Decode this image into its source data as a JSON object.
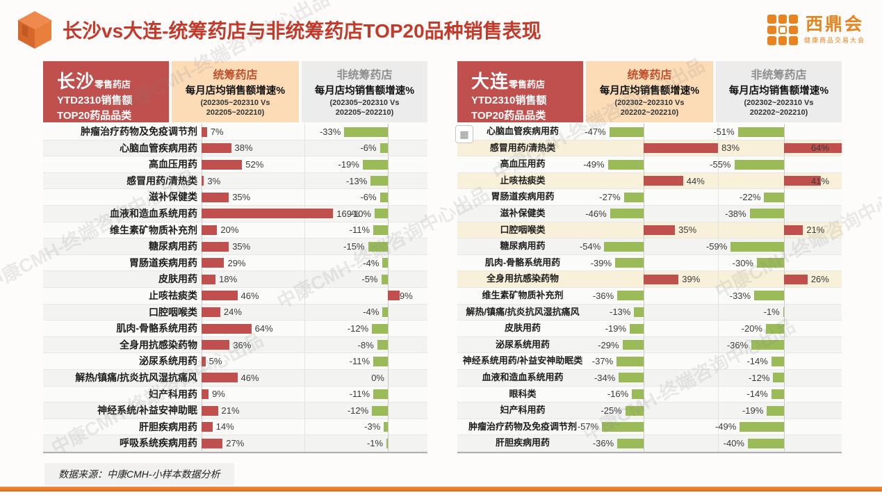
{
  "page": {
    "title": "长沙vs大连-统筹药店与非统筹药店TOP20品种销售表现",
    "source_note": "数据来源：中康CMH-小样本数据分析",
    "watermark": "中康CMH-终端咨询中心出品",
    "logo": {
      "name": "西鼎会",
      "tagline": "健康商品交易大会"
    }
  },
  "colors": {
    "positive_bar": "#c0504d",
    "negative_bar": "#9bbb59",
    "panel_header_bg": "#c0504d",
    "tc_header_bg": "#fbdcb7",
    "tc_header_title": "#c0512e",
    "ntc_header_bg": "#ececec",
    "ntc_header_title": "#8f8f8f",
    "highlight_row_bg": "#f8f0d8",
    "title_red": "#c33a2b",
    "logo_orange": "#e8831f"
  },
  "panels": [
    {
      "city": "长沙",
      "city_suffix": "零售药店",
      "subtitle1": "YTD2310销售额",
      "subtitle2": "TOP20药品品类",
      "tc_title": "统筹药店",
      "tc_metric": "每月店均销售额增速%",
      "tc_period": "(202305~202310 Vs\n202205~202210)",
      "ntc_title": "非统筹药店",
      "ntc_metric": "每月店均销售额增速%",
      "ntc_period": "(202305~202310 Vs\n202205~202210)"
    },
    {
      "city": "大连",
      "city_suffix": "零售药店",
      "subtitle1": "YTD2310销售额",
      "subtitle2": "TOP20药品品类",
      "tc_title": "统筹药店",
      "tc_metric": "每月店均销售额增速%",
      "tc_period": "(202302~202310 Vs\n202202~202210)",
      "ntc_title": "非统筹药店",
      "ntc_metric": "每月店均销售额增速%",
      "ntc_period": "(202302~202310 Vs\n202202~202210)"
    }
  ],
  "chart_data": [
    {
      "type": "bar",
      "orientation": "horizontal",
      "title": "长沙零售药店 YTD2310销售额 TOP20药品品类",
      "unit": "%",
      "categories": [
        "肿瘤治疗药物及免疫调节剂",
        "心脑血管疾病用药",
        "高血压用药",
        "感冒用药/清热类",
        "滋补保健类",
        "血液和造血系统用药",
        "维生素矿物质补充剂",
        "糖尿病用药",
        "胃肠道疾病用药",
        "皮肤用药",
        "止咳祛痰类",
        "口腔咽喉类",
        "肌肉-骨骼系统用药",
        "全身用抗感染药物",
        "泌尿系统用药",
        "解热/镇痛/抗炎抗风湿抗痛风",
        "妇产科用药",
        "神经系统/补益安神助眠",
        "肝胆疾病用药",
        "呼吸系统疾病用药"
      ],
      "series": [
        {
          "name": "统筹药店 每月店均销售额增速% (202305~202310 Vs 202205~202210)",
          "values": [
            7,
            38,
            52,
            3,
            35,
            169,
            20,
            35,
            29,
            18,
            46,
            24,
            64,
            36,
            5,
            46,
            9,
            21,
            14,
            27
          ]
        },
        {
          "name": "非统筹药店 每月店均销售额增速% (202305~202310 Vs 202205~202210)",
          "values": [
            -33,
            -6,
            -19,
            -13,
            -6,
            -10,
            -11,
            -15,
            -4,
            -5,
            9,
            -4,
            -12,
            -8,
            -11,
            0,
            -11,
            -12,
            -3,
            -1
          ]
        }
      ],
      "highlight_rows": []
    },
    {
      "type": "bar",
      "orientation": "horizontal",
      "title": "大连零售药店 YTD2310销售额 TOP20药品品类",
      "unit": "%",
      "categories": [
        "心脑血管疾病用药",
        "感冒用药/清热类",
        "高血压用药",
        "止咳祛痰类",
        "胃肠道疾病用药",
        "滋补保健类",
        "口腔咽喉类",
        "糖尿病用药",
        "肌肉-骨骼系统用药",
        "全身用抗感染药物",
        "维生素矿物质补充剂",
        "解热/镇痛/抗炎抗风湿抗痛风",
        "皮肤用药",
        "泌尿系统用药",
        "神经系统用药/补益安神助眠类",
        "血液和造血系统用药",
        "眼科类",
        "妇产科用药",
        "肿瘤治疗药物及免疫调节剂",
        "肝胆疾病用药"
      ],
      "series": [
        {
          "name": "统筹药店 每月店均销售额增速% (202302~202310 Vs 202202~202210)",
          "values": [
            -47,
            83,
            -49,
            44,
            -27,
            -46,
            35,
            -54,
            -39,
            39,
            -36,
            -13,
            -19,
            -29,
            -37,
            -34,
            -16,
            -25,
            -57,
            -36
          ]
        },
        {
          "name": "非统筹药店 每月店均销售额增速% (202302~202310 Vs 202202~202210)",
          "values": [
            -51,
            64,
            -55,
            41,
            -22,
            -38,
            21,
            -59,
            -30,
            26,
            -33,
            -1,
            -20,
            -36,
            -14,
            -12,
            -14,
            -19,
            -49,
            -40
          ]
        }
      ],
      "highlight_rows": [
        1,
        3,
        6,
        9
      ]
    }
  ]
}
